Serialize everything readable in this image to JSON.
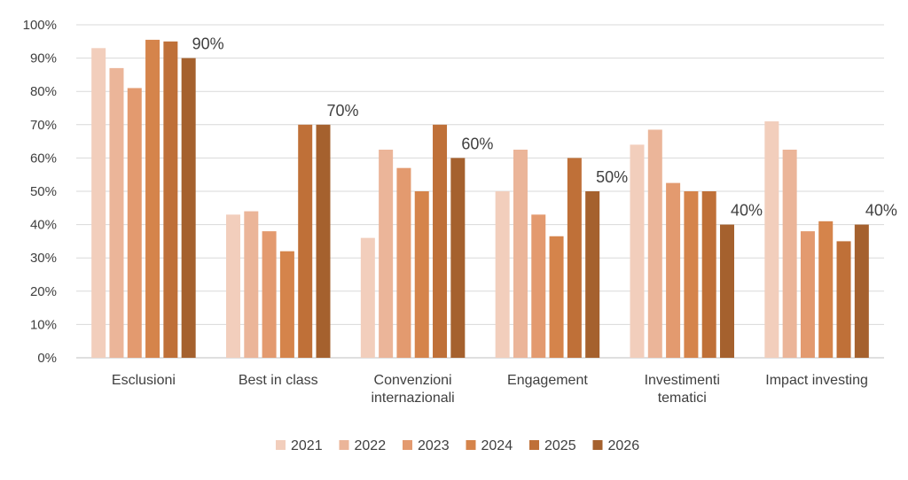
{
  "chart_data": {
    "type": "bar",
    "title": "",
    "xlabel": "",
    "ylabel": "",
    "ylim": [
      0,
      100
    ],
    "ytick_labels": [
      "0%",
      "10%",
      "20%",
      "30%",
      "40%",
      "50%",
      "60%",
      "70%",
      "80%",
      "90%",
      "100%"
    ],
    "grid": true,
    "legend_position": "bottom",
    "categories": [
      [
        "Esclusioni"
      ],
      [
        "Best in class"
      ],
      [
        "Convenzioni",
        "internazionali"
      ],
      [
        "Engagement"
      ],
      [
        "Investimenti",
        "tematici"
      ],
      [
        "Impact investing"
      ]
    ],
    "series": [
      {
        "name": "2021",
        "color": "#F2CEBC",
        "values": [
          93,
          43,
          36,
          50,
          64,
          71
        ]
      },
      {
        "name": "2022",
        "color": "#EBB599",
        "values": [
          87,
          44,
          62.5,
          62.5,
          68.5,
          62.5
        ]
      },
      {
        "name": "2023",
        "color": "#E39A6F",
        "values": [
          81,
          38,
          57,
          43,
          52.5,
          38
        ]
      },
      {
        "name": "2024",
        "color": "#D5844B",
        "values": [
          95.5,
          32,
          50,
          36.5,
          50,
          41
        ]
      },
      {
        "name": "2025",
        "color": "#BF7038",
        "values": [
          95,
          70,
          70,
          60,
          50,
          35
        ]
      },
      {
        "name": "2026",
        "color": "#A5612E",
        "values": [
          90,
          70,
          60,
          50,
          40,
          40
        ]
      }
    ],
    "data_labels": {
      "series": "2026",
      "labels": [
        "90%",
        "70%",
        "60%",
        "50%",
        "40%",
        "40%"
      ]
    }
  }
}
